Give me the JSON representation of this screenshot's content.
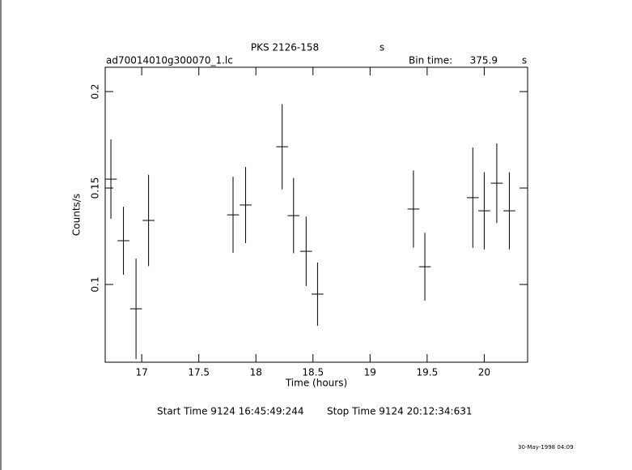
{
  "chart_data": {
    "type": "errorbar",
    "title": "PKS 2126-158",
    "title_suffix": "s",
    "filename": "ad70014010g300070_1.lc",
    "bin_time_label": "Bin time:",
    "bin_time": 375.9,
    "bin_time_unit": "s",
    "x_label": "Time (hours)",
    "y_label": "Counts/s",
    "start_time": "Start Time  9124 16:45:49:244",
    "stop_time": "Stop Time  9124 20:12:34:631",
    "timestamp": "30-May-1998 04:09",
    "x": [
      16.73,
      16.84,
      16.95,
      17.06,
      17.8,
      17.91,
      18.23,
      18.33,
      18.44,
      18.54,
      19.38,
      19.48,
      19.9,
      20.0,
      20.11,
      20.22
    ],
    "values": [
      0.1546,
      0.1227,
      0.0874,
      0.1332,
      0.1361,
      0.1412,
      0.1714,
      0.1357,
      0.1172,
      0.095,
      0.1391,
      0.1092,
      0.145,
      0.1382,
      0.1525,
      0.1382
    ],
    "yerr": [
      0.0206,
      0.0176,
      0.026,
      0.0237,
      0.0197,
      0.0197,
      0.0221,
      0.0195,
      0.018,
      0.0164,
      0.02,
      0.0176,
      0.026,
      0.02,
      0.0206,
      0.02
    ],
    "xerr": 0.052,
    "color": "#000000",
    "xlim": [
      16.68,
      20.38
    ],
    "xticks": [
      17,
      17.5,
      18,
      18.5,
      19,
      19.5,
      20
    ],
    "ylim": [
      0.0597,
      0.2126
    ],
    "yticks": [
      0.1,
      0.15,
      0.2
    ]
  }
}
